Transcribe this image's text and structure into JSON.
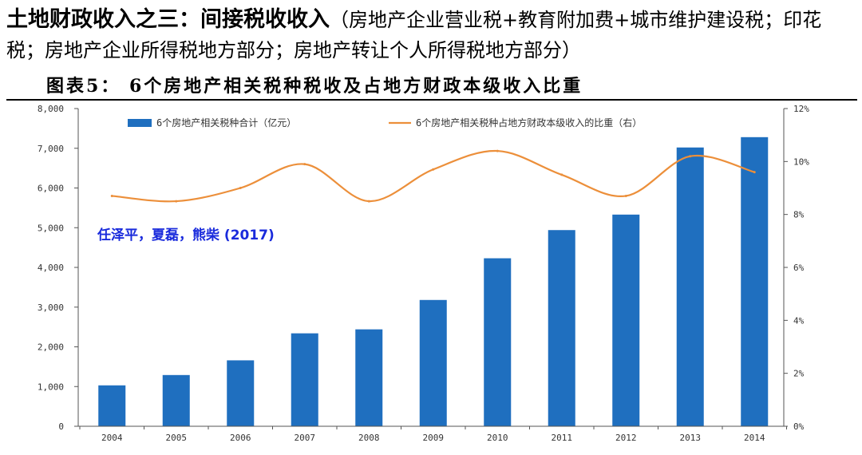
{
  "heading": {
    "main": "土地财政收入之三：间接税收收入",
    "paren_open": "（",
    "detail": "房地产企业营业税+教育附加费+城市维护建设税；印花税；房地产企业所得税地方部分；房地产转让个人所得税地方部分",
    "paren_close": "）"
  },
  "figure_title": "图表5：  6个房地产相关税种税收及占地方财政本级收入比重",
  "citation": "任泽平，夏磊，熊柴 (2017)",
  "colors": {
    "bar": "#1f6fbf",
    "line": "#ec8f3a",
    "axis": "#555555"
  },
  "chart_data": {
    "type": "bar",
    "categories": [
      "2004",
      "2005",
      "2006",
      "2007",
      "2008",
      "2009",
      "2010",
      "2011",
      "2012",
      "2013",
      "2014"
    ],
    "series": [
      {
        "name": "6个房地产相关税种合计（亿元）",
        "type": "bar",
        "axis": "left",
        "values": [
          1030,
          1290,
          1660,
          2340,
          2440,
          3180,
          4230,
          4940,
          5330,
          7020,
          7280
        ]
      },
      {
        "name": "6个房地产相关税种占地方财政本级收入的比重（右）",
        "type": "line",
        "axis": "right",
        "values": [
          8.7,
          8.5,
          9.0,
          9.9,
          8.5,
          9.7,
          10.4,
          9.5,
          8.7,
          10.2,
          9.6
        ]
      }
    ],
    "y_left": {
      "lim": [
        0,
        8000
      ],
      "ticks": [
        0,
        1000,
        2000,
        3000,
        4000,
        5000,
        6000,
        7000,
        8000
      ],
      "tick_labels": [
        "0",
        "1,000",
        "2,000",
        "3,000",
        "4,000",
        "5,000",
        "6,000",
        "7,000",
        "8,000"
      ]
    },
    "y_right": {
      "lim": [
        0,
        12
      ],
      "ticks": [
        0,
        2,
        4,
        6,
        8,
        10,
        12
      ],
      "tick_labels": [
        "0%",
        "2%",
        "4%",
        "6%",
        "8%",
        "10%",
        "12%"
      ]
    },
    "grid": false,
    "legend": "top"
  }
}
